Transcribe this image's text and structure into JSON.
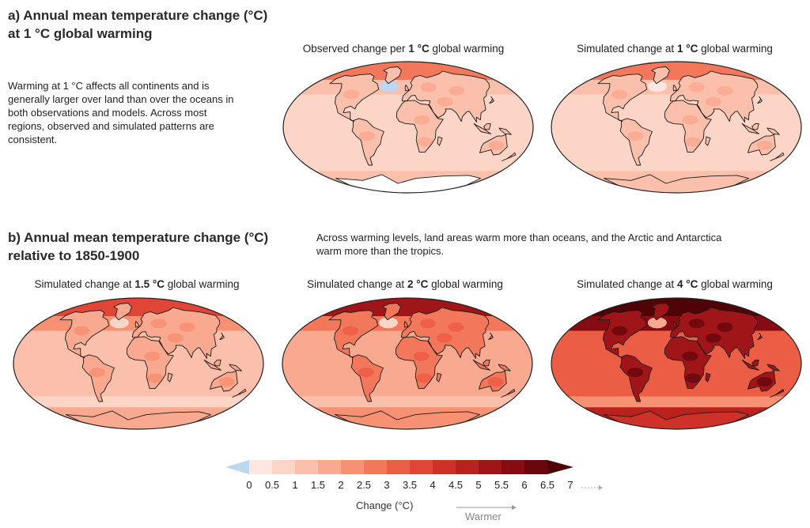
{
  "panel_a": {
    "title_line1": "a) Annual mean temperature change (°C)",
    "title_line2": "at 1 °C global warming",
    "description": "Warming at 1 °C affects all continents and is generally larger over land than over the oceans in both observations and models. Across most regions, observed and simulated patterns are consistent.",
    "maps": [
      {
        "title_pre": "Observed change per ",
        "title_bold": "1 °C",
        "title_post": " global warming",
        "level": 1,
        "observed": true
      },
      {
        "title_pre": "Simulated change at ",
        "title_bold": "1 °C",
        "title_post": " global warming",
        "level": 1,
        "observed": false
      }
    ]
  },
  "panel_b": {
    "title_line1": "b) Annual mean temperature change (°C)",
    "title_line2": "relative to 1850-1900",
    "description": "Across warming levels, land areas warm more than oceans, and the Arctic and Antarctica warm more than the tropics.",
    "maps": [
      {
        "title_pre": "Simulated change at ",
        "title_bold": "1.5 °C",
        "title_post": " global warming",
        "level": 1.5,
        "observed": false
      },
      {
        "title_pre": "Simulated change at ",
        "title_bold": "2 °C",
        "title_post": " global warming",
        "level": 2,
        "observed": false
      },
      {
        "title_pre": "Simulated change at ",
        "title_bold": "4 °C",
        "title_post": " global warming",
        "level": 4,
        "observed": false
      }
    ]
  },
  "legend": {
    "title": "Change (°C)",
    "arrow_label": "Warmer",
    "ticks": [
      "0",
      "0.5",
      "1",
      "1.5",
      "2",
      "2.5",
      "3",
      "3.5",
      "4",
      "4.5",
      "5",
      "5.5",
      "6",
      "6.5",
      "7"
    ],
    "colors": {
      "negative": "#bdd7ee",
      "bins": [
        "#fde7e0",
        "#fcd5c6",
        "#fbc0ab",
        "#f9a98f",
        "#f79174",
        "#f3775a",
        "#ec5d45",
        "#e04536",
        "#cf3128",
        "#b9211d",
        "#a01517",
        "#860c11",
        "#6a070d",
        "#500307"
      ]
    }
  }
}
